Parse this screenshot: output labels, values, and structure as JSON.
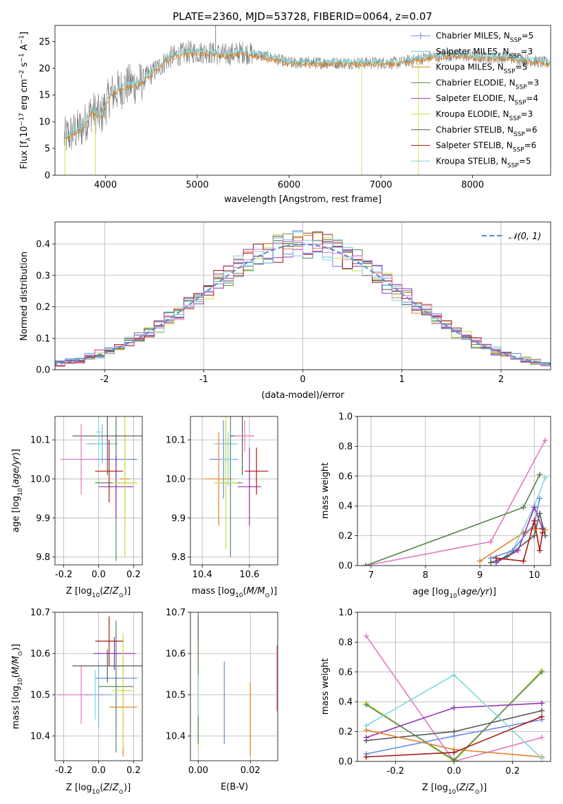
{
  "figure": {
    "title": "PLATE=2360, MJD=53728, FIBERID=0064, z=0.07"
  },
  "colors": {
    "Chabrier MILES": "#6688dd",
    "Salpeter MILES": "#66bbdd",
    "Kroupa MILES": "#e08020",
    "Chabrier ELODIE": "#558855",
    "Salpeter ELODIE": "#9030b0",
    "Kroupa ELODIE": "#c8dd40",
    "Chabrier STELIB": "#555555",
    "Salpeter STELIB": "#aa1515",
    "Kroupa STELIB": "#88ccee",
    "pink": "#e377c2",
    "cyan": "#7fd7d7",
    "normal": "#5b8fd6"
  },
  "chart_data": [
    {
      "id": "spectrum",
      "type": "line",
      "xlabel": "wavelength [Angstrom, rest frame]",
      "ylabel": "Flux [f",
      "xlim": [
        3450,
        8850
      ],
      "ylim": [
        0,
        28
      ],
      "xticks": [
        4000,
        5000,
        6000,
        7000,
        8000
      ],
      "yticks": [
        0,
        5,
        10,
        15,
        20,
        25
      ],
      "continuum": {
        "x": [
          3550,
          3650,
          3750,
          3850,
          3950,
          4050,
          4150,
          4250,
          4350,
          4500,
          4700,
          4900,
          5100,
          5300,
          5500,
          5800,
          6000,
          6300,
          6600,
          6900,
          7200,
          7500,
          7800,
          8100,
          8400,
          8800
        ],
        "y": [
          7,
          8,
          9,
          12,
          11,
          15,
          16,
          17,
          17,
          19,
          22,
          23,
          23,
          22.5,
          23,
          22,
          21,
          21,
          21,
          21,
          21,
          22,
          22.5,
          22,
          22,
          21
        ]
      },
      "legend": [
        {
          "name": "Chabrier MILES",
          "nssp": "5"
        },
        {
          "name": "Salpeter MILES",
          "nssp": "3"
        },
        {
          "name": "Kroupa MILES",
          "nssp": "5"
        },
        {
          "name": "Chabrier ELODIE",
          "nssp": "3"
        },
        {
          "name": "Salpeter ELODIE",
          "nssp": "4"
        },
        {
          "name": "Kroupa ELODIE",
          "nssp": "3"
        },
        {
          "name": "Chabrier STELIB",
          "nssp": "6"
        },
        {
          "name": "Salpeter STELIB",
          "nssp": "6"
        },
        {
          "name": "Kroupa STELIB",
          "nssp": "5"
        }
      ]
    },
    {
      "id": "residuals",
      "type": "histogram",
      "xlabel": "(data-model)/error",
      "ylabel": "Normed distribution",
      "xlim": [
        -2.5,
        2.5
      ],
      "ylim": [
        0,
        0.47
      ],
      "xticks": [
        -2,
        -1,
        0,
        1,
        2
      ],
      "yticks": [
        0.0,
        0.1,
        0.2,
        0.3,
        0.4
      ],
      "legend": "𝒩(0, 1)",
      "bin_width": 0.1
    },
    {
      "id": "age_vs_Z",
      "type": "errorbar",
      "xlabel": "Z [log",
      "ylabel": "age  [log",
      "xlim": [
        -0.25,
        0.25
      ],
      "ylim": [
        9.78,
        10.16
      ],
      "xticks": [
        -0.2,
        0.0,
        0.2
      ],
      "yticks": [
        9.8,
        9.9,
        10.0,
        10.1
      ],
      "points": [
        {
          "c": "Chabrier MILES",
          "x": 0.1,
          "y": 10.05,
          "ex": 0.12,
          "ey": 0.1
        },
        {
          "c": "Salpeter MILES",
          "x": 0.02,
          "y": 10.09,
          "ex": 0.09,
          "ey": 0.05
        },
        {
          "c": "Kroupa MILES",
          "x": 0.15,
          "y": 10.0,
          "ex": 0.03,
          "ey": 0.12
        },
        {
          "c": "Chabrier ELODIE",
          "x": 0.1,
          "y": 9.99,
          "ex": 0.12,
          "ey": 0.2
        },
        {
          "c": "Salpeter ELODIE",
          "x": 0.1,
          "y": 9.98,
          "ex": 0.1,
          "ey": 0.08
        },
        {
          "c": "Kroupa ELODIE",
          "x": 0.15,
          "y": 9.99,
          "ex": 0.07,
          "ey": 0.19
        },
        {
          "c": "Chabrier STELIB",
          "x": 0.05,
          "y": 10.11,
          "ex": 0.2,
          "ey": 0.1
        },
        {
          "c": "Salpeter STELIB",
          "x": 0.06,
          "y": 10.02,
          "ex": 0.08,
          "ey": 0.08
        },
        {
          "c": "pink",
          "x": -0.1,
          "y": 10.05,
          "ex": 0.12,
          "ey": 0.09
        },
        {
          "c": "cyan",
          "x": 0.0,
          "y": 10.12,
          "ex": 0.02,
          "ey": 0.09
        }
      ]
    },
    {
      "id": "age_vs_mass",
      "type": "errorbar",
      "xlabel": "mass [log",
      "ylabel": "",
      "xlim": [
        10.35,
        10.72
      ],
      "ylim": [
        9.78,
        10.16
      ],
      "xticks": [
        10.4,
        10.6
      ],
      "yticks": [
        9.8,
        9.9,
        10.0,
        10.1
      ],
      "points": [
        {
          "c": "Chabrier MILES",
          "x": 10.49,
          "y": 10.05,
          "ex": 0.06,
          "ey": 0.1
        },
        {
          "c": "Salpeter MILES",
          "x": 10.5,
          "y": 10.09,
          "ex": 0.05,
          "ey": 0.05
        },
        {
          "c": "Kroupa MILES",
          "x": 10.47,
          "y": 10.0,
          "ex": 0.06,
          "ey": 0.12
        },
        {
          "c": "Chabrier ELODIE",
          "x": 10.52,
          "y": 9.99,
          "ex": 0.05,
          "ey": 0.19
        },
        {
          "c": "Salpeter ELODIE",
          "x": 10.6,
          "y": 9.98,
          "ex": 0.05,
          "ey": 0.1
        },
        {
          "c": "Kroupa ELODIE",
          "x": 10.5,
          "y": 9.99,
          "ex": 0.05,
          "ey": 0.17
        },
        {
          "c": "Chabrier STELIB",
          "x": 10.57,
          "y": 10.11,
          "ex": 0.05,
          "ey": 0.1
        },
        {
          "c": "Salpeter STELIB",
          "x": 10.63,
          "y": 10.02,
          "ex": 0.05,
          "ey": 0.06
        },
        {
          "c": "pink",
          "x": 10.58,
          "y": 10.11,
          "ex": 0.04,
          "ey": 0.04
        },
        {
          "c": "cyan",
          "x": 10.51,
          "y": 10.05,
          "ex": 0.03,
          "ey": 0.07
        }
      ]
    },
    {
      "id": "weight_vs_age",
      "type": "line",
      "xlabel": "age  [log",
      "ylabel": "mass weight",
      "xlim": [
        6.75,
        10.3
      ],
      "ylim": [
        0,
        1.0
      ],
      "xticks": [
        7,
        8,
        9,
        10
      ],
      "yticks": [
        0.0,
        0.2,
        0.4,
        0.6,
        0.8,
        1.0
      ],
      "series": [
        {
          "c": "pink",
          "x": [
            6.9,
            9.2,
            10.2
          ],
          "y": [
            0.0,
            0.16,
            0.84
          ]
        },
        {
          "c": "Kroupa ELODIE",
          "x": [
            6.9,
            9.8,
            10.1
          ],
          "y": [
            0.0,
            0.39,
            0.61
          ]
        },
        {
          "c": "Chabrier ELODIE",
          "x": [
            6.9,
            9.8,
            10.1
          ],
          "y": [
            0.0,
            0.39,
            0.61
          ]
        },
        {
          "c": "Kroupa MILES",
          "x": [
            9.0,
            9.8,
            10.0,
            10.2
          ],
          "y": [
            0.03,
            0.22,
            0.25,
            0.24
          ]
        },
        {
          "c": "cyan",
          "x": [
            9.3,
            9.6,
            10.0,
            10.2
          ],
          "y": [
            0.02,
            0.1,
            0.4,
            0.59
          ]
        },
        {
          "c": "Salpeter ELODIE",
          "x": [
            9.3,
            9.7,
            10.0,
            10.15
          ],
          "y": [
            0.02,
            0.1,
            0.39,
            0.25
          ]
        },
        {
          "c": "Chabrier MILES",
          "x": [
            9.2,
            9.6,
            10.0,
            10.1
          ],
          "y": [
            0.05,
            0.1,
            0.28,
            0.45
          ]
        },
        {
          "c": "Chabrier STELIB",
          "x": [
            9.2,
            9.5,
            10.0,
            10.1,
            10.2
          ],
          "y": [
            0.02,
            0.06,
            0.2,
            0.35,
            0.2
          ]
        },
        {
          "c": "Salpeter STELIB",
          "x": [
            9.3,
            9.8,
            10.0,
            10.1,
            10.15
          ],
          "y": [
            0.05,
            0.03,
            0.3,
            0.1,
            0.22
          ]
        }
      ]
    },
    {
      "id": "mass_vs_Z",
      "type": "errorbar",
      "xlabel": "Z [log",
      "ylabel": "mass [log",
      "xlim": [
        -0.25,
        0.25
      ],
      "ylim": [
        10.34,
        10.7
      ],
      "xticks": [
        -0.2,
        0.0,
        0.2
      ],
      "yticks": [
        10.4,
        10.5,
        10.6,
        10.7
      ],
      "points": [
        {
          "c": "Chabrier MILES",
          "x": 0.1,
          "y": 10.54,
          "ex": 0.12,
          "ey": 0.12
        },
        {
          "c": "Salpeter MILES",
          "x": 0.0,
          "y": 10.5,
          "ex": 0.08,
          "ey": 0.08
        },
        {
          "c": "Kroupa MILES",
          "x": 0.14,
          "y": 10.47,
          "ex": 0.08,
          "ey": 0.12
        },
        {
          "c": "Chabrier ELODIE",
          "x": 0.1,
          "y": 10.52,
          "ex": 0.1,
          "ey": 0.16
        },
        {
          "c": "Salpeter ELODIE",
          "x": 0.09,
          "y": 10.6,
          "ex": 0.12,
          "ey": 0.04
        },
        {
          "c": "Kroupa ELODIE",
          "x": 0.14,
          "y": 10.51,
          "ex": 0.06,
          "ey": 0.14
        },
        {
          "c": "Chabrier STELIB",
          "x": 0.05,
          "y": 10.57,
          "ex": 0.2,
          "ey": 0.04
        },
        {
          "c": "Salpeter STELIB",
          "x": 0.06,
          "y": 10.63,
          "ex": 0.08,
          "ey": 0.06
        },
        {
          "c": "pink",
          "x": -0.1,
          "y": 10.5,
          "ex": 0.14,
          "ey": 0.07
        },
        {
          "c": "cyan",
          "x": -0.02,
          "y": 10.5,
          "ex": 0.02,
          "ey": 0.06
        }
      ]
    },
    {
      "id": "mass_vs_ebv",
      "type": "errorbar",
      "xlabel": "E(B-V)",
      "ylabel": "",
      "xlim": [
        -0.003,
        0.0305
      ],
      "ylim": [
        10.34,
        10.7
      ],
      "xticks": [
        0.0,
        0.02
      ],
      "yticks": [
        10.4,
        10.5,
        10.6,
        10.7
      ],
      "points": [
        {
          "c": "Chabrier MILES",
          "x": 0.01,
          "y": 10.48,
          "ex": 0,
          "ey": 0.1
        },
        {
          "c": "Kroupa MILES",
          "x": 0.02,
          "y": 10.44,
          "ex": 0,
          "ey": 0.09
        },
        {
          "c": "pink",
          "x": 0.0302,
          "y": 10.54,
          "ex": 0,
          "ey": 0.08
        },
        {
          "c": "Salpeter STELIB",
          "x": 0.0,
          "y": 10.64,
          "ex": 0,
          "ey": 0.05
        },
        {
          "c": "Kroupa ELODIE",
          "x": 0.0,
          "y": 10.5,
          "ex": 0,
          "ey": 0.13
        },
        {
          "c": "Chabrier ELODIE",
          "x": 0.0,
          "y": 10.55,
          "ex": 0,
          "ey": 0.17
        },
        {
          "c": "cyan",
          "x": 0.0,
          "y": 10.5,
          "ex": 0,
          "ey": 0.05
        }
      ]
    },
    {
      "id": "weight_vs_Z",
      "type": "line",
      "xlabel": "Z [log",
      "ylabel": "mass weight",
      "xlim": [
        -0.33,
        0.33
      ],
      "ylim": [
        0,
        1.0
      ],
      "xticks": [
        -0.2,
        0.0,
        0.2
      ],
      "yticks": [
        0.0,
        0.2,
        0.4,
        0.6,
        0.8,
        1.0
      ],
      "series": [
        {
          "c": "pink",
          "x": [
            -0.3,
            0.0,
            0.3
          ],
          "y": [
            0.84,
            0.0,
            0.16
          ]
        },
        {
          "c": "Kroupa ELODIE",
          "x": [
            -0.3,
            0.0,
            0.3
          ],
          "y": [
            0.39,
            0.0,
            0.61
          ]
        },
        {
          "c": "Chabrier ELODIE",
          "x": [
            -0.3,
            0.0,
            0.3
          ],
          "y": [
            0.38,
            0.01,
            0.6
          ]
        },
        {
          "c": "Salpeter ELODIE",
          "x": [
            -0.3,
            0.0,
            0.3
          ],
          "y": [
            0.16,
            0.36,
            0.39
          ]
        },
        {
          "c": "Chabrier STELIB",
          "x": [
            -0.3,
            0.0,
            0.3
          ],
          "y": [
            0.14,
            0.2,
            0.34
          ]
        },
        {
          "c": "Chabrier MILES",
          "x": [
            -0.3,
            0.0,
            0.3
          ],
          "y": [
            0.05,
            0.17,
            0.28
          ]
        },
        {
          "c": "Kroupa MILES",
          "x": [
            -0.3,
            0.0,
            0.3
          ],
          "y": [
            0.21,
            0.08,
            0.03
          ]
        },
        {
          "c": "cyan",
          "x": [
            -0.3,
            0.0,
            0.3
          ],
          "y": [
            0.24,
            0.58,
            0.02
          ]
        },
        {
          "c": "Salpeter STELIB",
          "x": [
            -0.3,
            0.0,
            0.3
          ],
          "y": [
            0.03,
            0.06,
            0.3
          ]
        }
      ]
    }
  ]
}
